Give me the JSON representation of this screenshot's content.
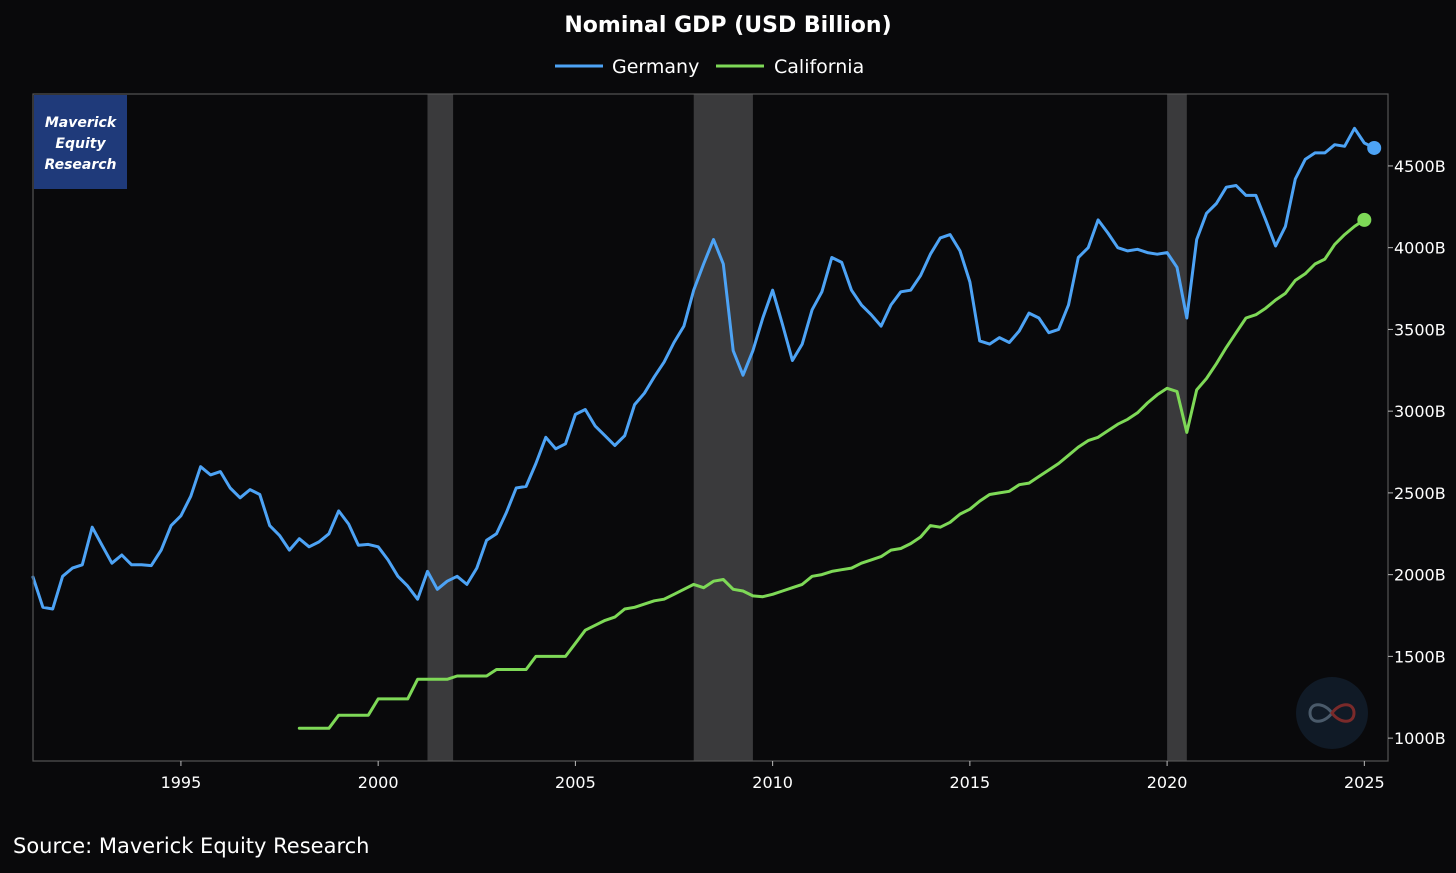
{
  "colors": {
    "background": "#09090b",
    "germany": "#4da3f5",
    "california": "#7ed957",
    "recession_band": "#3a3a3c",
    "frame": "#555555",
    "badge": "#1f3a7a"
  },
  "badge": {
    "line1": "Maverick",
    "line2": "Equity",
    "line3": "Research"
  },
  "source": "Source: Maverick Equity Research",
  "watermark_icon": "infinity-logo-icon",
  "chart_data": {
    "type": "line",
    "title": "Nominal GDP (USD Billion)",
    "xlabel": "",
    "ylabel": "",
    "xlim": [
      1991.25,
      2025.6
    ],
    "ylim": [
      860,
      4940
    ],
    "y_axis_side": "right",
    "legend_position": "top-center",
    "x_ticks": [
      1995,
      2000,
      2005,
      2010,
      2015,
      2020,
      2025
    ],
    "x_tick_labels": [
      "1995",
      "2000",
      "2005",
      "2010",
      "2015",
      "2020",
      "2025"
    ],
    "y_ticks": [
      1000,
      1500,
      2000,
      2500,
      3000,
      3500,
      4000,
      4500
    ],
    "y_tick_labels": [
      "1000B",
      "1500B",
      "2000B",
      "2500B",
      "3000B",
      "3500B",
      "4000B",
      "4500B"
    ],
    "recession_bands": [
      [
        2001.25,
        2001.9
      ],
      [
        2008.0,
        2009.5
      ],
      [
        2020.0,
        2020.5
      ]
    ],
    "series": [
      {
        "name": "Germany",
        "x": [
          1991.25,
          1991.5,
          1991.75,
          1992.0,
          1992.25,
          1992.5,
          1992.75,
          1993.0,
          1993.25,
          1993.5,
          1993.75,
          1994.0,
          1994.25,
          1994.5,
          1994.75,
          1995.0,
          1995.25,
          1995.5,
          1995.75,
          1996.0,
          1996.25,
          1996.5,
          1996.75,
          1997.0,
          1997.25,
          1997.5,
          1997.75,
          1998.0,
          1998.25,
          1998.5,
          1998.75,
          1999.0,
          1999.25,
          1999.5,
          1999.75,
          2000.0,
          2000.25,
          2000.5,
          2000.75,
          2001.0,
          2001.25,
          2001.5,
          2001.75,
          2002.0,
          2002.25,
          2002.5,
          2002.75,
          2003.0,
          2003.25,
          2003.5,
          2003.75,
          2004.0,
          2004.25,
          2004.5,
          2004.75,
          2005.0,
          2005.25,
          2005.5,
          2005.75,
          2006.0,
          2006.25,
          2006.5,
          2006.75,
          2007.0,
          2007.25,
          2007.5,
          2007.75,
          2008.0,
          2008.25,
          2008.5,
          2008.75,
          2009.0,
          2009.25,
          2009.5,
          2009.75,
          2010.0,
          2010.25,
          2010.5,
          2010.75,
          2011.0,
          2011.25,
          2011.5,
          2011.75,
          2012.0,
          2012.25,
          2012.5,
          2012.75,
          2013.0,
          2013.25,
          2013.5,
          2013.75,
          2014.0,
          2014.25,
          2014.5,
          2014.75,
          2015.0,
          2015.25,
          2015.5,
          2015.75,
          2016.0,
          2016.25,
          2016.5,
          2016.75,
          2017.0,
          2017.25,
          2017.5,
          2017.75,
          2018.0,
          2018.25,
          2018.5,
          2018.75,
          2019.0,
          2019.25,
          2019.5,
          2019.75,
          2020.0,
          2020.25,
          2020.5,
          2020.75,
          2021.0,
          2021.25,
          2021.5,
          2021.75,
          2022.0,
          2022.25,
          2022.5,
          2022.75,
          2023.0,
          2023.25,
          2023.5,
          2023.75,
          2024.0,
          2024.25,
          2024.5,
          2024.75,
          2025.0,
          2025.25
        ],
        "values": [
          1985,
          1800,
          1790,
          1990,
          2040,
          2060,
          2290,
          2180,
          2070,
          2120,
          2060,
          2060,
          2055,
          2150,
          2300,
          2360,
          2480,
          2660,
          2610,
          2630,
          2530,
          2470,
          2520,
          2490,
          2300,
          2240,
          2150,
          2220,
          2170,
          2200,
          2250,
          2390,
          2310,
          2180,
          2185,
          2170,
          2090,
          1990,
          1930,
          1850,
          2020,
          1910,
          1960,
          1990,
          1940,
          2040,
          2210,
          2250,
          2380,
          2530,
          2540,
          2680,
          2840,
          2770,
          2800,
          2980,
          3010,
          2910,
          2850,
          2790,
          2850,
          3040,
          3110,
          3210,
          3300,
          3420,
          3520,
          3740,
          3900,
          4050,
          3900,
          3370,
          3220,
          3370,
          3570,
          3740,
          3530,
          3310,
          3410,
          3620,
          3730,
          3940,
          3910,
          3740,
          3650,
          3590,
          3520,
          3650,
          3730,
          3740,
          3830,
          3960,
          4060,
          4080,
          3980,
          3790,
          3430,
          3410,
          3450,
          3420,
          3490,
          3600,
          3570,
          3480,
          3500,
          3650,
          3940,
          4000,
          4170,
          4090,
          4000,
          3980,
          3990,
          3970,
          3960,
          3970,
          3880,
          3570,
          4050,
          4210,
          4270,
          4370,
          4380,
          4320,
          4320,
          4170,
          4010,
          4130,
          4420,
          4540,
          4580,
          4580,
          4630,
          4620,
          4730,
          4640,
          4610
        ]
      },
      {
        "name": "California",
        "x": [
          1998.0,
          1998.25,
          1998.5,
          1998.75,
          1999.0,
          1999.25,
          1999.5,
          1999.75,
          2000.0,
          2000.25,
          2000.5,
          2000.75,
          2001.0,
          2001.25,
          2001.5,
          2001.75,
          2002.0,
          2002.25,
          2002.5,
          2002.75,
          2003.0,
          2003.25,
          2003.5,
          2003.75,
          2004.0,
          2004.25,
          2004.5,
          2004.75,
          2005.0,
          2005.25,
          2005.5,
          2005.75,
          2006.0,
          2006.25,
          2006.5,
          2006.75,
          2007.0,
          2007.25,
          2007.5,
          2007.75,
          2008.0,
          2008.25,
          2008.5,
          2008.75,
          2009.0,
          2009.25,
          2009.5,
          2009.75,
          2010.0,
          2010.25,
          2010.5,
          2010.75,
          2011.0,
          2011.25,
          2011.5,
          2011.75,
          2012.0,
          2012.25,
          2012.5,
          2012.75,
          2013.0,
          2013.25,
          2013.5,
          2013.75,
          2014.0,
          2014.25,
          2014.5,
          2014.75,
          2015.0,
          2015.25,
          2015.5,
          2015.75,
          2016.0,
          2016.25,
          2016.5,
          2016.75,
          2017.0,
          2017.25,
          2017.5,
          2017.75,
          2018.0,
          2018.25,
          2018.5,
          2018.75,
          2019.0,
          2019.25,
          2019.5,
          2019.75,
          2020.0,
          2020.25,
          2020.5,
          2020.75,
          2021.0,
          2021.25,
          2021.5,
          2021.75,
          2022.0,
          2022.25,
          2022.5,
          2022.75,
          2023.0,
          2023.25,
          2023.5,
          2023.75,
          2024.0,
          2024.25,
          2024.5,
          2024.75,
          2025.0
        ],
        "values": [
          1060,
          1060,
          1060,
          1060,
          1140,
          1140,
          1140,
          1140,
          1240,
          1240,
          1240,
          1240,
          1360,
          1360,
          1360,
          1360,
          1380,
          1380,
          1380,
          1380,
          1420,
          1420,
          1420,
          1420,
          1500,
          1500,
          1500,
          1500,
          1580,
          1660,
          1690,
          1720,
          1740,
          1790,
          1800,
          1820,
          1840,
          1850,
          1880,
          1910,
          1940,
          1920,
          1960,
          1970,
          1910,
          1900,
          1870,
          1865,
          1880,
          1900,
          1920,
          1940,
          1990,
          2000,
          2020,
          2030,
          2040,
          2070,
          2090,
          2110,
          2150,
          2160,
          2190,
          2230,
          2300,
          2290,
          2320,
          2370,
          2400,
          2450,
          2490,
          2500,
          2510,
          2550,
          2560,
          2600,
          2640,
          2680,
          2730,
          2780,
          2820,
          2840,
          2880,
          2920,
          2950,
          2990,
          3050,
          3100,
          3140,
          3120,
          2870,
          3130,
          3200,
          3290,
          3390,
          3480,
          3570,
          3590,
          3630,
          3680,
          3720,
          3800,
          3840,
          3900,
          3930,
          4020,
          4080,
          4130,
          4170
        ]
      }
    ]
  }
}
